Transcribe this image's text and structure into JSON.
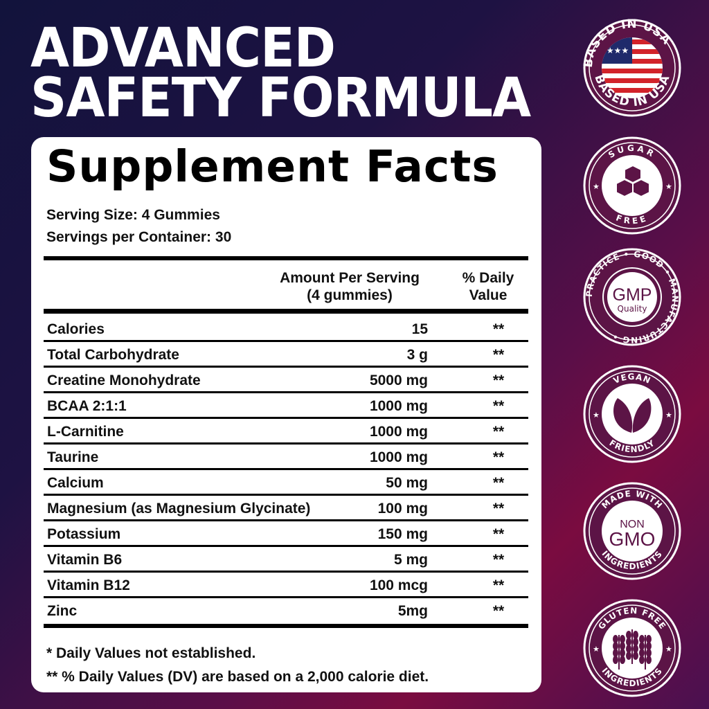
{
  "headline": {
    "line1": "ADVANCED",
    "line2": "SAFETY FORMULA"
  },
  "facts": {
    "title": "Supplement Facts",
    "serving_size": "Serving Size: 4 Gummies",
    "servings_per_container": "Servings per Container: 30",
    "col_amount_1": "Amount Per Serving",
    "col_amount_2": "(4 gummies)",
    "col_dv_1": "% Daily",
    "col_dv_2": "Value",
    "rows": [
      {
        "name": "Calories",
        "amount": "15",
        "dv": "**"
      },
      {
        "name": "Total Carbohydrate",
        "amount": "3 g",
        "dv": "**"
      },
      {
        "name": "Creatine Monohydrate",
        "amount": "5000 mg",
        "dv": "**"
      },
      {
        "name": "BCAA 2:1:1",
        "amount": "1000 mg",
        "dv": "**"
      },
      {
        "name": "L-Carnitine",
        "amount": "1000 mg",
        "dv": "**"
      },
      {
        "name": "Taurine",
        "amount": "1000 mg",
        "dv": "**"
      },
      {
        "name": "Calcium",
        "amount": "50 mg",
        "dv": "**"
      },
      {
        "name": "Magnesium (as Magnesium Glycinate)",
        "amount": "100 mg",
        "dv": "**"
      },
      {
        "name": "Potassium",
        "amount": "150 mg",
        "dv": "**"
      },
      {
        "name": "Vitamin B6",
        "amount": "5 mg",
        "dv": "**"
      },
      {
        "name": "Vitamin B12",
        "amount": "100 mcg",
        "dv": "**"
      },
      {
        "name": "Zinc",
        "amount": "5mg",
        "dv": "**"
      }
    ],
    "footnote1": "* Daily Values not established.",
    "footnote2": "** % Daily Values (DV) are based on a 2,000 calorie diet."
  },
  "badges": [
    {
      "icon": "usa-flag-icon",
      "top": "BASED IN USA",
      "bottom": "BASED IN USA"
    },
    {
      "icon": "sugar-cubes-icon",
      "top": "SUGAR",
      "bottom": "FREE"
    },
    {
      "icon": "gmp-icon",
      "top": "PRACTICE • GOOD • MANUFACTURING •",
      "center1": "GMP",
      "center2": "Quality"
    },
    {
      "icon": "leaf-icon",
      "top": "VEGAN",
      "bottom": "FRIENDLY"
    },
    {
      "icon": "non-gmo-icon",
      "top": "MADE WITH",
      "bottom": "INGREDIENTS",
      "center1": "NON",
      "center2": "GMO"
    },
    {
      "icon": "wheat-icon",
      "top": "GLUTEN FREE",
      "bottom": "INGREDIENTS"
    }
  ],
  "colors": {
    "badge_fill": "#5c1446",
    "flag_red": "#d2232a",
    "flag_blue": "#1f2a6b"
  }
}
